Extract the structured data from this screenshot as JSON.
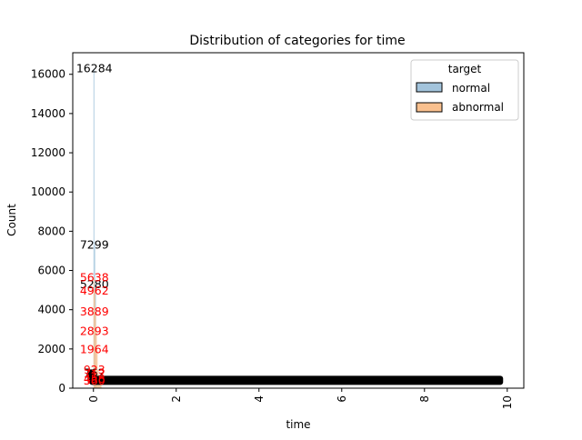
{
  "chart_data": {
    "type": "histogram",
    "title": "Distribution of categories for time",
    "xlabel": "time",
    "ylabel": "Count",
    "xlim": [
      -0.5,
      10.4
    ],
    "ylim": [
      0,
      17100
    ],
    "x_ticks": [
      "0",
      "2",
      "4",
      "6",
      "8",
      "10"
    ],
    "y_ticks": [
      "0",
      "2000",
      "4000",
      "6000",
      "8000",
      "10000",
      "12000",
      "14000",
      "16000"
    ],
    "legend": {
      "title": "target",
      "placement": "top-right",
      "entries": [
        {
          "label": "normal",
          "color": "#a3c4dc",
          "edge": "#000000"
        },
        {
          "label": "abnormal",
          "color": "#f9c08e",
          "edge": "#000000"
        }
      ]
    },
    "series": [
      {
        "name": "normal",
        "label_color": "#000000",
        "bars": [
          {
            "x": 0.0,
            "value": 16284
          },
          {
            "x": 0.01,
            "value": 7299
          },
          {
            "x": 0.02,
            "value": 5280
          },
          {
            "x": 0.03,
            "value": 762
          }
        ]
      },
      {
        "name": "abnormal",
        "label_color": "#ff0000",
        "bars": [
          {
            "x": 0.0,
            "value": 5638
          },
          {
            "x": 0.01,
            "value": 4962
          },
          {
            "x": 0.02,
            "value": 3889
          },
          {
            "x": 0.03,
            "value": 2893
          },
          {
            "x": 0.04,
            "value": 1964
          },
          {
            "x": 0.05,
            "value": 923
          },
          {
            "x": 0.06,
            "value": 712
          },
          {
            "x": 0.07,
            "value": 458
          },
          {
            "x": 0.08,
            "value": 380
          },
          {
            "x": 0.09,
            "value": 360
          }
        ]
      }
    ],
    "dense_band": {
      "x_start": -0.1,
      "x_end": 9.9,
      "y_value": 400,
      "color": "#000000"
    }
  }
}
